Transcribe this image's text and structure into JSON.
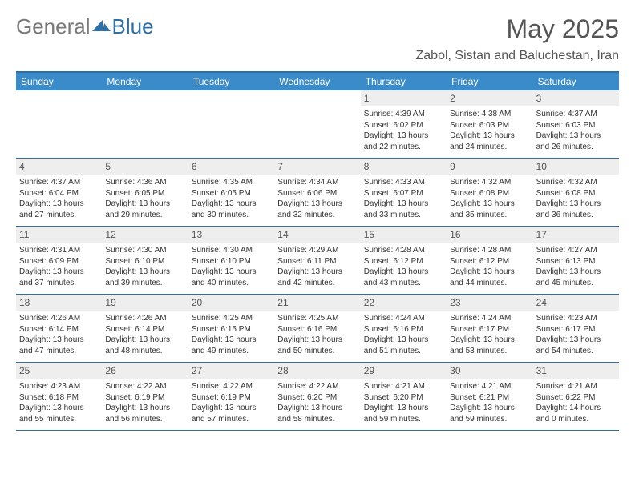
{
  "logo": {
    "general": "General",
    "blue": "Blue"
  },
  "title": {
    "month": "May 2025",
    "location": "Zabol, Sistan and Baluchestan, Iran"
  },
  "colors": {
    "header_bg": "#3a8bc9",
    "header_border": "#2f6fa8",
    "daynum_bg": "#eeeeee",
    "text": "#333333",
    "title_text": "#555555"
  },
  "weekdays": [
    "Sunday",
    "Monday",
    "Tuesday",
    "Wednesday",
    "Thursday",
    "Friday",
    "Saturday"
  ],
  "weeks": [
    [
      null,
      null,
      null,
      null,
      {
        "n": "1",
        "sr": "Sunrise: 4:39 AM",
        "ss": "Sunset: 6:02 PM",
        "d1": "Daylight: 13 hours",
        "d2": "and 22 minutes."
      },
      {
        "n": "2",
        "sr": "Sunrise: 4:38 AM",
        "ss": "Sunset: 6:03 PM",
        "d1": "Daylight: 13 hours",
        "d2": "and 24 minutes."
      },
      {
        "n": "3",
        "sr": "Sunrise: 4:37 AM",
        "ss": "Sunset: 6:03 PM",
        "d1": "Daylight: 13 hours",
        "d2": "and 26 minutes."
      }
    ],
    [
      {
        "n": "4",
        "sr": "Sunrise: 4:37 AM",
        "ss": "Sunset: 6:04 PM",
        "d1": "Daylight: 13 hours",
        "d2": "and 27 minutes."
      },
      {
        "n": "5",
        "sr": "Sunrise: 4:36 AM",
        "ss": "Sunset: 6:05 PM",
        "d1": "Daylight: 13 hours",
        "d2": "and 29 minutes."
      },
      {
        "n": "6",
        "sr": "Sunrise: 4:35 AM",
        "ss": "Sunset: 6:05 PM",
        "d1": "Daylight: 13 hours",
        "d2": "and 30 minutes."
      },
      {
        "n": "7",
        "sr": "Sunrise: 4:34 AM",
        "ss": "Sunset: 6:06 PM",
        "d1": "Daylight: 13 hours",
        "d2": "and 32 minutes."
      },
      {
        "n": "8",
        "sr": "Sunrise: 4:33 AM",
        "ss": "Sunset: 6:07 PM",
        "d1": "Daylight: 13 hours",
        "d2": "and 33 minutes."
      },
      {
        "n": "9",
        "sr": "Sunrise: 4:32 AM",
        "ss": "Sunset: 6:08 PM",
        "d1": "Daylight: 13 hours",
        "d2": "and 35 minutes."
      },
      {
        "n": "10",
        "sr": "Sunrise: 4:32 AM",
        "ss": "Sunset: 6:08 PM",
        "d1": "Daylight: 13 hours",
        "d2": "and 36 minutes."
      }
    ],
    [
      {
        "n": "11",
        "sr": "Sunrise: 4:31 AM",
        "ss": "Sunset: 6:09 PM",
        "d1": "Daylight: 13 hours",
        "d2": "and 37 minutes."
      },
      {
        "n": "12",
        "sr": "Sunrise: 4:30 AM",
        "ss": "Sunset: 6:10 PM",
        "d1": "Daylight: 13 hours",
        "d2": "and 39 minutes."
      },
      {
        "n": "13",
        "sr": "Sunrise: 4:30 AM",
        "ss": "Sunset: 6:10 PM",
        "d1": "Daylight: 13 hours",
        "d2": "and 40 minutes."
      },
      {
        "n": "14",
        "sr": "Sunrise: 4:29 AM",
        "ss": "Sunset: 6:11 PM",
        "d1": "Daylight: 13 hours",
        "d2": "and 42 minutes."
      },
      {
        "n": "15",
        "sr": "Sunrise: 4:28 AM",
        "ss": "Sunset: 6:12 PM",
        "d1": "Daylight: 13 hours",
        "d2": "and 43 minutes."
      },
      {
        "n": "16",
        "sr": "Sunrise: 4:28 AM",
        "ss": "Sunset: 6:12 PM",
        "d1": "Daylight: 13 hours",
        "d2": "and 44 minutes."
      },
      {
        "n": "17",
        "sr": "Sunrise: 4:27 AM",
        "ss": "Sunset: 6:13 PM",
        "d1": "Daylight: 13 hours",
        "d2": "and 45 minutes."
      }
    ],
    [
      {
        "n": "18",
        "sr": "Sunrise: 4:26 AM",
        "ss": "Sunset: 6:14 PM",
        "d1": "Daylight: 13 hours",
        "d2": "and 47 minutes."
      },
      {
        "n": "19",
        "sr": "Sunrise: 4:26 AM",
        "ss": "Sunset: 6:14 PM",
        "d1": "Daylight: 13 hours",
        "d2": "and 48 minutes."
      },
      {
        "n": "20",
        "sr": "Sunrise: 4:25 AM",
        "ss": "Sunset: 6:15 PM",
        "d1": "Daylight: 13 hours",
        "d2": "and 49 minutes."
      },
      {
        "n": "21",
        "sr": "Sunrise: 4:25 AM",
        "ss": "Sunset: 6:16 PM",
        "d1": "Daylight: 13 hours",
        "d2": "and 50 minutes."
      },
      {
        "n": "22",
        "sr": "Sunrise: 4:24 AM",
        "ss": "Sunset: 6:16 PM",
        "d1": "Daylight: 13 hours",
        "d2": "and 51 minutes."
      },
      {
        "n": "23",
        "sr": "Sunrise: 4:24 AM",
        "ss": "Sunset: 6:17 PM",
        "d1": "Daylight: 13 hours",
        "d2": "and 53 minutes."
      },
      {
        "n": "24",
        "sr": "Sunrise: 4:23 AM",
        "ss": "Sunset: 6:17 PM",
        "d1": "Daylight: 13 hours",
        "d2": "and 54 minutes."
      }
    ],
    [
      {
        "n": "25",
        "sr": "Sunrise: 4:23 AM",
        "ss": "Sunset: 6:18 PM",
        "d1": "Daylight: 13 hours",
        "d2": "and 55 minutes."
      },
      {
        "n": "26",
        "sr": "Sunrise: 4:22 AM",
        "ss": "Sunset: 6:19 PM",
        "d1": "Daylight: 13 hours",
        "d2": "and 56 minutes."
      },
      {
        "n": "27",
        "sr": "Sunrise: 4:22 AM",
        "ss": "Sunset: 6:19 PM",
        "d1": "Daylight: 13 hours",
        "d2": "and 57 minutes."
      },
      {
        "n": "28",
        "sr": "Sunrise: 4:22 AM",
        "ss": "Sunset: 6:20 PM",
        "d1": "Daylight: 13 hours",
        "d2": "and 58 minutes."
      },
      {
        "n": "29",
        "sr": "Sunrise: 4:21 AM",
        "ss": "Sunset: 6:20 PM",
        "d1": "Daylight: 13 hours",
        "d2": "and 59 minutes."
      },
      {
        "n": "30",
        "sr": "Sunrise: 4:21 AM",
        "ss": "Sunset: 6:21 PM",
        "d1": "Daylight: 13 hours",
        "d2": "and 59 minutes."
      },
      {
        "n": "31",
        "sr": "Sunrise: 4:21 AM",
        "ss": "Sunset: 6:22 PM",
        "d1": "Daylight: 14 hours",
        "d2": "and 0 minutes."
      }
    ]
  ]
}
